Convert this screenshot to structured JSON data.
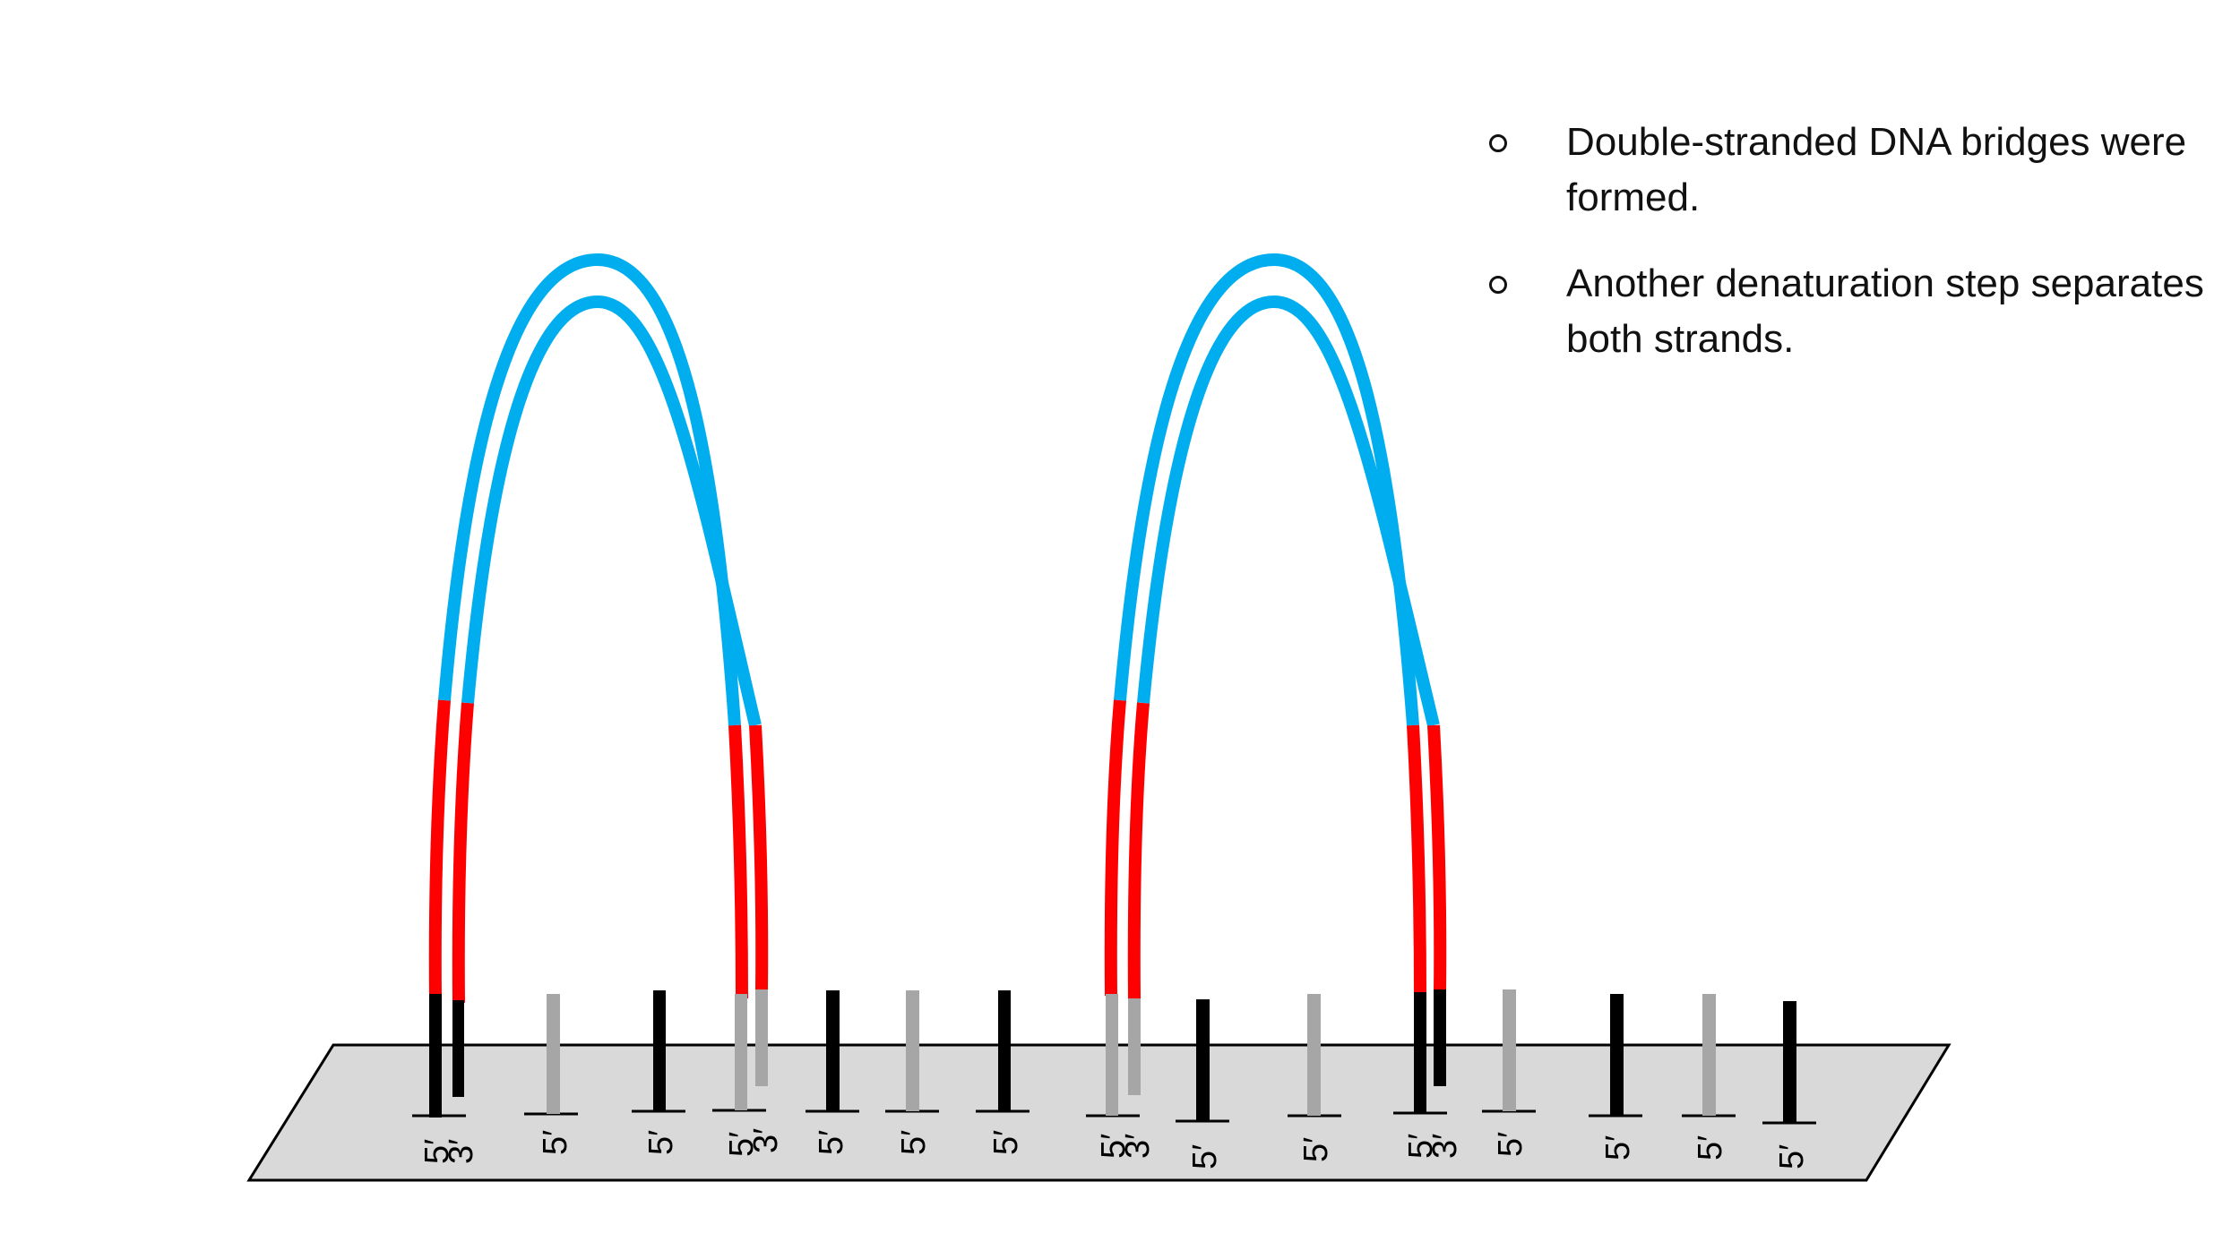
{
  "notes": [
    {
      "text": "Double-stranded DNA bridges were formed."
    },
    {
      "text": "Another denaturation step separates both strands."
    }
  ],
  "strand_labels": {
    "five_prime": "5′",
    "three_prime": "3′"
  },
  "colors": {
    "template_region": "#00aeef",
    "adapter_region": "#ff0000",
    "primer_type_a": "#000000",
    "primer_type_b": "#a6a6a6",
    "flow_cell": "#d9d9d9"
  }
}
